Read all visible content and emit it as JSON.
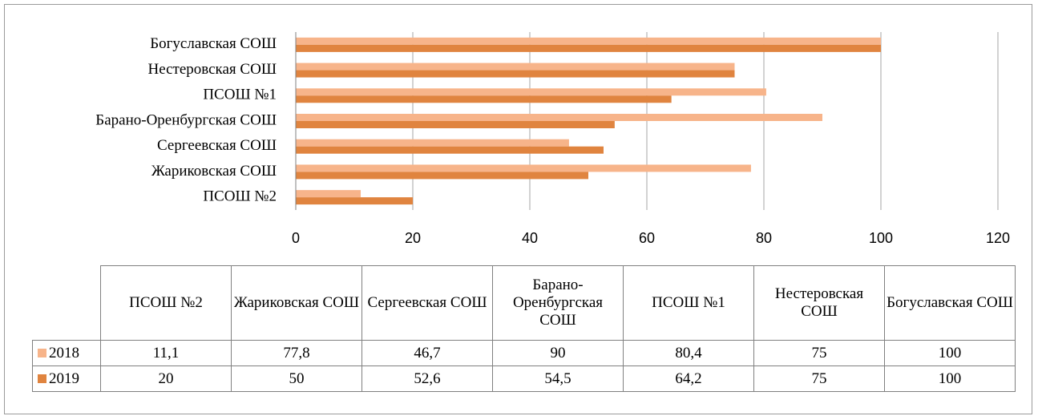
{
  "chart_data": {
    "type": "barh",
    "categories": [
      "ПСОШ №2",
      "Жариковская СОШ",
      "Сергеевская СОШ",
      "Барано-Оренбургская СОШ",
      "ПСОШ №1",
      "Нестеровская СОШ",
      "Богуславская СОШ"
    ],
    "series": [
      {
        "name": "2018",
        "color": "#f7b48a",
        "values": [
          11.1,
          77.8,
          46.7,
          90,
          80.4,
          75,
          100
        ],
        "value_labels": [
          "11,1",
          "77,8",
          "46,7",
          "90",
          "80,4",
          "75",
          "100"
        ]
      },
      {
        "name": "2019",
        "color": "#e0843f",
        "values": [
          20,
          50,
          52.6,
          54.5,
          64.2,
          75,
          100
        ],
        "value_labels": [
          "20",
          "50",
          "52,6",
          "54,5",
          "64,2",
          "75",
          "100"
        ]
      }
    ],
    "xlim": [
      0,
      120
    ],
    "xticks": [
      0,
      20,
      40,
      60,
      80,
      100,
      120
    ],
    "grid": true
  }
}
